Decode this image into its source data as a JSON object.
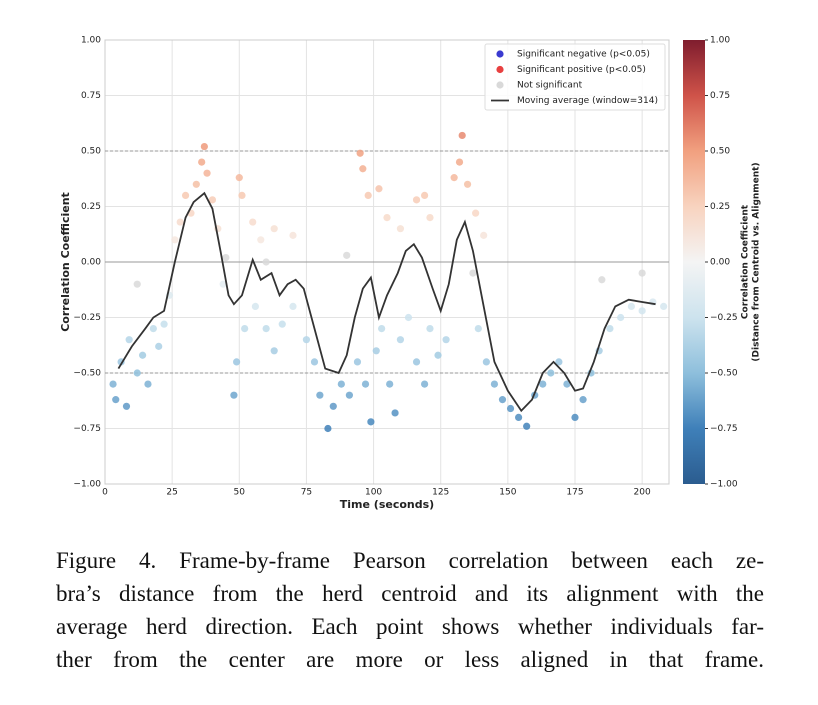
{
  "chart_data": {
    "type": "scatter",
    "xlabel": "Time (seconds)",
    "ylabel": "Correlation Coefficient",
    "xlim": [
      0,
      210
    ],
    "xticks": [
      0,
      25,
      50,
      75,
      100,
      125,
      150,
      175,
      200
    ],
    "ylim": [
      -1,
      1
    ],
    "yticks": [
      {
        "value": -1,
        "label": "−1.00"
      },
      {
        "value": -0.75,
        "label": "−0.75"
      },
      {
        "value": -0.5,
        "label": "−0.50"
      },
      {
        "value": -0.25,
        "label": "−0.25"
      },
      {
        "value": 0,
        "label": "0.00"
      },
      {
        "value": 0.25,
        "label": "0.25"
      },
      {
        "value": 0.5,
        "label": "0.50"
      },
      {
        "value": 0.75,
        "label": "0.75"
      },
      {
        "value": 1,
        "label": "1.00"
      }
    ],
    "grid": true,
    "legend": "upper right",
    "colormap": "RdBu_r",
    "hlines": [
      {
        "value": 0.5,
        "style": "dashed"
      },
      {
        "value": 0,
        "style": "solid"
      },
      {
        "value": -0.5,
        "style": "dashed"
      }
    ],
    "colorbar": {
      "label": [
        "Correlation Coefficient",
        "(Distance from Centroid vs. Alignment)"
      ],
      "lim": [
        -1,
        1
      ],
      "ticks": [
        {
          "value": -1,
          "label": "−1.00"
        },
        {
          "value": -0.75,
          "label": "−0.75"
        },
        {
          "value": -0.5,
          "label": "−0.50"
        },
        {
          "value": -0.25,
          "label": "−0.25"
        },
        {
          "value": 0,
          "label": "0.00"
        },
        {
          "value": 0.25,
          "label": "0.25"
        },
        {
          "value": 0.5,
          "label": "0.50"
        },
        {
          "value": 0.75,
          "label": "0.75"
        },
        {
          "value": 1,
          "label": "1.00"
        }
      ]
    },
    "series": [
      {
        "name": "Significant negative (p<0.05)",
        "color": "#3a3ad0",
        "kind": "points",
        "x": [
          3,
          4,
          6,
          8,
          9,
          12,
          14,
          16,
          18,
          20,
          22,
          24,
          44,
          48,
          49,
          52,
          56,
          60,
          63,
          66,
          70,
          75,
          78,
          80,
          83,
          85,
          88,
          91,
          94,
          97,
          99,
          101,
          103,
          106,
          108,
          110,
          113,
          116,
          119,
          121,
          124,
          127,
          139,
          142,
          145,
          148,
          151,
          154,
          157,
          160,
          163,
          166,
          169,
          172,
          175,
          178,
          181,
          184,
          188,
          192,
          196,
          200,
          204,
          208
        ],
        "values": [
          -0.55,
          -0.62,
          -0.45,
          -0.65,
          -0.35,
          -0.5,
          -0.42,
          -0.55,
          -0.3,
          -0.38,
          -0.28,
          -0.15,
          -0.1,
          -0.6,
          -0.45,
          -0.3,
          -0.2,
          -0.3,
          -0.4,
          -0.28,
          -0.2,
          -0.35,
          -0.45,
          -0.6,
          -0.75,
          -0.65,
          -0.55,
          -0.6,
          -0.45,
          -0.55,
          -0.72,
          -0.4,
          -0.3,
          -0.55,
          -0.68,
          -0.35,
          -0.25,
          -0.45,
          -0.55,
          -0.3,
          -0.42,
          -0.35,
          -0.3,
          -0.45,
          -0.55,
          -0.62,
          -0.66,
          -0.7,
          -0.74,
          -0.6,
          -0.55,
          -0.5,
          -0.45,
          -0.55,
          -0.7,
          -0.62,
          -0.5,
          -0.4,
          -0.3,
          -0.25,
          -0.2,
          -0.22,
          -0.18,
          -0.2
        ]
      },
      {
        "name": "Significant positive (p<0.05)",
        "color": "#e84040",
        "kind": "points",
        "x": [
          26,
          28,
          30,
          32,
          34,
          36,
          37,
          38,
          40,
          42,
          50,
          51,
          55,
          58,
          63,
          70,
          95,
          96,
          98,
          102,
          105,
          110,
          116,
          119,
          121,
          130,
          132,
          133,
          135,
          138,
          141
        ],
        "values": [
          0.1,
          0.18,
          0.3,
          0.22,
          0.35,
          0.45,
          0.52,
          0.4,
          0.28,
          0.15,
          0.38,
          0.3,
          0.18,
          0.1,
          0.15,
          0.12,
          0.49,
          0.42,
          0.3,
          0.33,
          0.2,
          0.15,
          0.28,
          0.3,
          0.2,
          0.38,
          0.45,
          0.57,
          0.35,
          0.22,
          0.12
        ]
      },
      {
        "name": "Not significant",
        "color": "#d9d9d9",
        "kind": "points",
        "x": [
          12,
          45,
          60,
          90,
          137,
          185,
          200
        ],
        "values": [
          -0.1,
          0.02,
          0,
          0.03,
          -0.05,
          -0.08,
          -0.05
        ]
      },
      {
        "name": "Moving average (window=314)",
        "color": "#333333",
        "kind": "line",
        "x": [
          5,
          10,
          15,
          18,
          22,
          26,
          30,
          33,
          37,
          40,
          43,
          46,
          48,
          51,
          55,
          58,
          62,
          65,
          68,
          71,
          74,
          78,
          82,
          87,
          90,
          93,
          96,
          99,
          102,
          105,
          109,
          112,
          115,
          118,
          122,
          125,
          128,
          131,
          134,
          137,
          141,
          145,
          150,
          155,
          159,
          163,
          167,
          171,
          175,
          178,
          182,
          186,
          190,
          195,
          200,
          205
        ],
        "values": [
          -0.48,
          -0.38,
          -0.3,
          -0.25,
          -0.22,
          0,
          0.2,
          0.27,
          0.31,
          0.24,
          0.05,
          -0.15,
          -0.19,
          -0.15,
          0.01,
          -0.08,
          -0.05,
          -0.15,
          -0.1,
          -0.08,
          -0.12,
          -0.3,
          -0.48,
          -0.5,
          -0.42,
          -0.25,
          -0.12,
          -0.07,
          -0.25,
          -0.15,
          -0.05,
          0.05,
          0.08,
          0.02,
          -0.12,
          -0.22,
          -0.1,
          0.1,
          0.18,
          0.05,
          -0.2,
          -0.45,
          -0.58,
          -0.67,
          -0.62,
          -0.5,
          -0.45,
          -0.5,
          -0.58,
          -0.57,
          -0.45,
          -0.3,
          -0.2,
          -0.17,
          -0.18,
          -0.19
        ]
      }
    ]
  },
  "caption": [
    "Figure 4.  Frame-by-frame Pearson correlation between each ze-",
    "bra’s distance from the herd centroid and its alignment with the",
    "average herd direction. Each point shows whether individuals far-",
    "ther from the center are more or less aligned in that frame."
  ]
}
